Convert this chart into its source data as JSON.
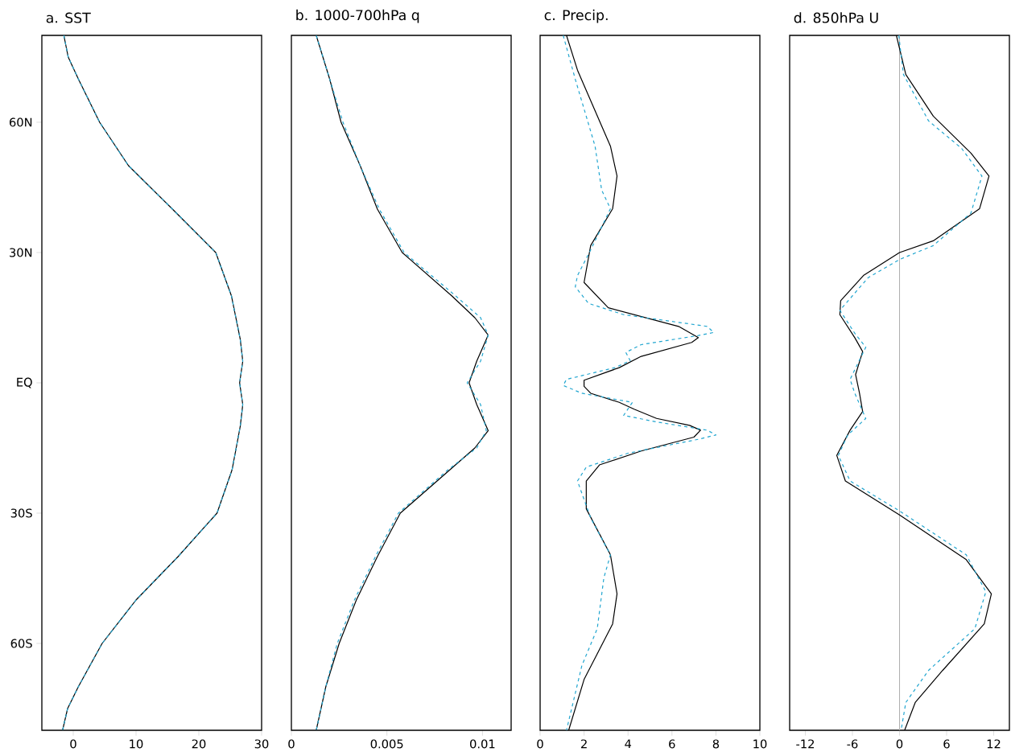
{
  "chart_data": [
    {
      "type": "line",
      "title": "a. SST",
      "xlim": [
        -5,
        30
      ],
      "xticks": [
        0,
        10,
        20,
        30
      ],
      "ylim": [
        -80,
        80
      ],
      "yticks": [
        {
          "value": -60,
          "label": "60S"
        },
        {
          "value": -30,
          "label": "30S"
        },
        {
          "value": 0,
          "label": "EQ"
        },
        {
          "value": 30,
          "label": "30N"
        },
        {
          "value": 60,
          "label": "60N"
        }
      ],
      "series": [
        {
          "color": "#000000",
          "line_style": "solid",
          "x": [
            -1.5,
            -0.8,
            0.8,
            4.2,
            8.8,
            15.8,
            22.7,
            25.2,
            26.6,
            27.0,
            26.5,
            27.0,
            26.6,
            25.3,
            22.9,
            16.7,
            10.0,
            4.6,
            0.8,
            -0.9,
            -1.7
          ],
          "values": [
            80,
            75,
            70,
            60,
            50,
            40,
            30,
            20,
            10,
            5,
            0,
            -5,
            -10,
            -20,
            -30,
            -40,
            -50,
            -60,
            -70,
            -75,
            -80
          ]
        },
        {
          "color": "#22a6d0",
          "line_style": "dashed",
          "x": [
            -1.5,
            -0.8,
            0.8,
            4.2,
            8.8,
            15.8,
            22.7,
            25.2,
            26.6,
            27.0,
            26.5,
            27.0,
            26.6,
            25.3,
            22.9,
            16.7,
            10.0,
            4.6,
            0.8,
            -0.9,
            -1.7
          ],
          "values": [
            80,
            75,
            70,
            60,
            50,
            40,
            30,
            20,
            10,
            5,
            0,
            -5,
            -10,
            -20,
            -30,
            -40,
            -50,
            -60,
            -70,
            -75,
            -80
          ]
        }
      ]
    },
    {
      "type": "line",
      "title": "b. 1000-700hPa q",
      "xlim": [
        0,
        0.0115
      ],
      "xticks": [
        0,
        0.005,
        0.01
      ],
      "ylim": [
        -80,
        80
      ],
      "tick_labels": "x",
      "series": [
        {
          "color": "#000000",
          "line_style": "solid",
          "x": [
            0.0013,
            0.002,
            0.0026,
            0.0036,
            0.0045,
            0.0058,
            0.0084,
            0.0096,
            0.0103,
            0.0097,
            0.0093,
            0.0097,
            0.0103,
            0.0096,
            0.0083,
            0.0057,
            0.0045,
            0.0034,
            0.0025,
            0.0018,
            0.0013
          ],
          "values": [
            80,
            70,
            60,
            50,
            40,
            30,
            20,
            15,
            11,
            5,
            0,
            -5,
            -11,
            -15,
            -20,
            -30,
            -40,
            -50,
            -60,
            -70,
            -80
          ]
        },
        {
          "color": "#22a6d0",
          "line_style": "dashed",
          "x": [
            0.0013,
            0.002,
            0.0027,
            0.0036,
            0.0046,
            0.0059,
            0.0086,
            0.0099,
            0.0103,
            0.0099,
            0.0092,
            0.0099,
            0.0102,
            0.0097,
            0.0082,
            0.0056,
            0.0044,
            0.0033,
            0.0024,
            0.0018,
            0.0013
          ],
          "values": [
            80,
            70,
            60,
            50,
            40,
            30,
            20,
            15,
            11,
            5,
            0,
            -5,
            -11,
            -15,
            -20,
            -30,
            -40,
            -50,
            -60,
            -70,
            -80
          ]
        }
      ]
    },
    {
      "type": "line",
      "title": "c. Precip.",
      "xlim": [
        0,
        10
      ],
      "xticks": [
        0,
        2,
        4,
        6,
        8,
        10
      ],
      "ylim": [
        -80,
        80
      ],
      "tick_labels": "x",
      "series": [
        {
          "color": "#000000",
          "line_style": "solid",
          "x": [
            1.2,
            1.7,
            3.2,
            3.5,
            3.3,
            2.3,
            2.0,
            3.1,
            6.3,
            7.2,
            6.9,
            4.6,
            3.6,
            2.0,
            2.0,
            2.3,
            3.6,
            4.3,
            5.3,
            6.8,
            7.3,
            7.0,
            4.6,
            2.7,
            2.1,
            2.1,
            3.2,
            3.5,
            3.3,
            2.0,
            1.3
          ],
          "values": [
            80,
            72,
            54.5,
            47.6,
            40.1,
            31.6,
            23.1,
            17.3,
            13.0,
            10.4,
            9.3,
            6.1,
            3.5,
            0.6,
            -0.8,
            -2.4,
            -4.5,
            -6.1,
            -8.2,
            -9.8,
            -10.9,
            -12.5,
            -15.7,
            -18.9,
            -22.6,
            -29.0,
            -39.6,
            -48.6,
            -55.5,
            -68.3,
            -80
          ]
        },
        {
          "color": "#22a6d0",
          "line_style": "dashed",
          "x": [
            1.05,
            1.6,
            2.5,
            2.8,
            3.2,
            2.3,
            1.7,
            1.6,
            2.2,
            3.8,
            7.6,
            7.9,
            7.2,
            4.6,
            3.9,
            4.1,
            3.4,
            1.2,
            1.05,
            1.9,
            4.2,
            3.8,
            5.3,
            7.6,
            8.0,
            7.2,
            4.0,
            2.1,
            1.7,
            2.3,
            3.2,
            2.9,
            2.6,
            1.9,
            1.2
          ],
          "values": [
            80,
            69.9,
            54.5,
            44.4,
            40.1,
            30.6,
            24.7,
            22.1,
            18.3,
            15.7,
            13.0,
            11.6,
            10.9,
            8.8,
            7.0,
            5.1,
            3.5,
            0.8,
            -0.6,
            -2.4,
            -4.5,
            -7.5,
            -9.0,
            -10.9,
            -12.0,
            -13.0,
            -16.2,
            -19.4,
            -22.6,
            -31.1,
            -39.6,
            -44.9,
            -56.6,
            -65.1,
            -80
          ]
        }
      ]
    },
    {
      "type": "line",
      "title": "d. 850hPa U",
      "xlim": [
        -14,
        14
      ],
      "xticks": [
        -12,
        -6,
        0,
        6,
        12
      ],
      "ylim": [
        -80,
        80
      ],
      "tick_labels": "x",
      "ref_lines": [
        {
          "axis": "x",
          "value": 0,
          "color": "#b0b0b0"
        }
      ],
      "series": [
        {
          "color": "#000000",
          "line_style": "solid",
          "x": [
            -0.4,
            0.8,
            4.3,
            9.1,
            11.4,
            10.2,
            4.3,
            0,
            -4.6,
            -7.5,
            -7.6,
            -5.7,
            -4.7,
            -5.6,
            -5.1,
            -4.7,
            -6.3,
            -8.0,
            -6.9,
            0,
            8.5,
            11.7,
            10.8,
            5.5,
            2.0,
            0.65
          ],
          "values": [
            80,
            71,
            61.4,
            52.9,
            47.6,
            40.1,
            32.7,
            30.0,
            24.7,
            18.9,
            15.7,
            10.4,
            7.2,
            1.9,
            -2.4,
            -6.6,
            -10.9,
            -16.7,
            -22.6,
            -30.4,
            -40.7,
            -48.6,
            -55.5,
            -66.2,
            -73.6,
            -80
          ]
        },
        {
          "color": "#22a6d0",
          "line_style": "dashed",
          "x": [
            -0.1,
            0.5,
            3.7,
            7.9,
            10.5,
            9.1,
            4.3,
            0,
            -4.0,
            -7.6,
            -5.7,
            -4.3,
            -6.3,
            -5.7,
            -4.3,
            -6.6,
            -7.8,
            -6.3,
            0,
            8.5,
            11.0,
            9.6,
            3.7,
            0.8,
            0.2
          ],
          "values": [
            80,
            71,
            60.3,
            54.0,
            47.6,
            39.1,
            31.6,
            28.4,
            24.2,
            16.7,
            11.4,
            8.2,
            0.8,
            -2.4,
            -8.2,
            -12.0,
            -16.7,
            -22.6,
            -29.5,
            -39.6,
            -48.1,
            -56.6,
            -66.2,
            -73.6,
            -80
          ]
        }
      ]
    }
  ]
}
